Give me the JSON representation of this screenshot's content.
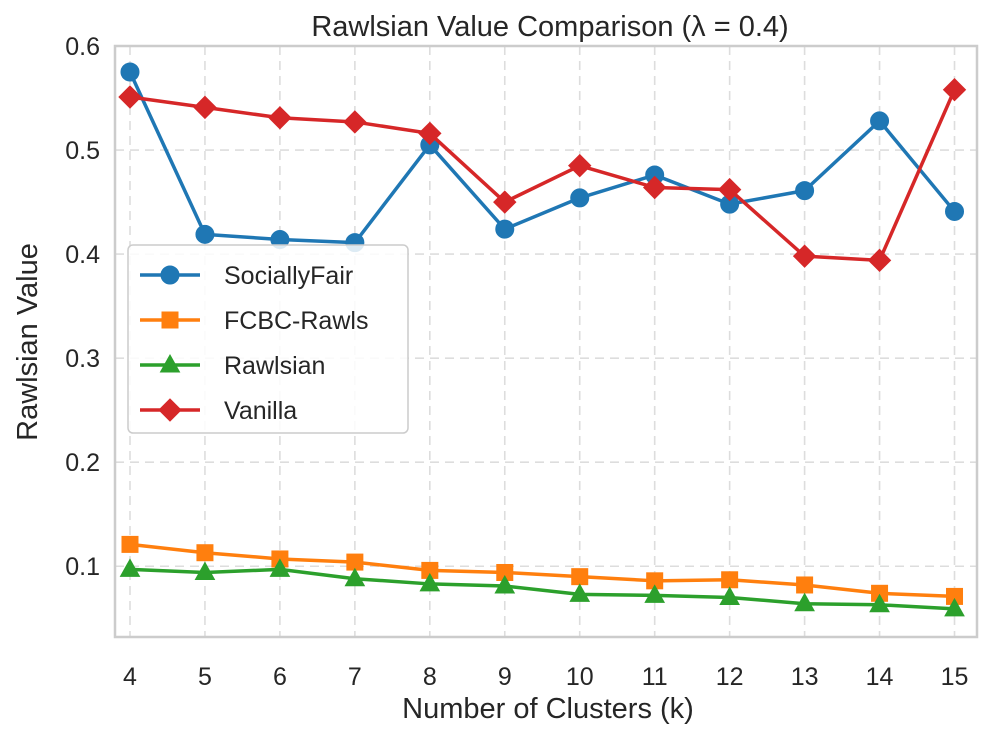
{
  "chart_data": {
    "type": "line",
    "title": "Rawlsian Value Comparison (λ = 0.4)",
    "xlabel": "Number of Clusters (k)",
    "ylabel": "Rawlsian Value",
    "x": [
      4,
      5,
      6,
      7,
      8,
      9,
      10,
      11,
      12,
      13,
      14,
      15
    ],
    "xlim": [
      3.8,
      15.3
    ],
    "ylim": [
      0.032,
      0.6
    ],
    "yticks": [
      0.1,
      0.2,
      0.3,
      0.4,
      0.5,
      0.6
    ],
    "ytick_labels": [
      "0.1",
      "0.2",
      "0.3",
      "0.4",
      "0.5",
      "0.6"
    ],
    "xtick_labels": [
      "4",
      "5",
      "6",
      "7",
      "8",
      "9",
      "10",
      "11",
      "12",
      "13",
      "14",
      "15"
    ],
    "grid": true,
    "legend_position": "center-left",
    "series": [
      {
        "name": "SociallyFair",
        "color": "#1f77b4",
        "marker": "circle",
        "values": [
          0.575,
          0.419,
          0.414,
          0.411,
          0.505,
          0.424,
          0.454,
          0.476,
          0.448,
          0.461,
          0.528,
          0.441
        ]
      },
      {
        "name": "FCBC-Rawls",
        "color": "#ff7f0e",
        "marker": "square",
        "values": [
          0.121,
          0.113,
          0.107,
          0.104,
          0.096,
          0.094,
          0.09,
          0.086,
          0.087,
          0.082,
          0.074,
          0.071
        ]
      },
      {
        "name": "Rawlsian",
        "color": "#2ca02c",
        "marker": "triangle",
        "values": [
          0.097,
          0.094,
          0.097,
          0.088,
          0.083,
          0.081,
          0.073,
          0.072,
          0.07,
          0.064,
          0.063,
          0.059
        ]
      },
      {
        "name": "Vanilla",
        "color": "#d62728",
        "marker": "diamond",
        "values": [
          0.551,
          0.541,
          0.531,
          0.527,
          0.516,
          0.45,
          0.485,
          0.464,
          0.462,
          0.398,
          0.394,
          0.558
        ]
      }
    ]
  }
}
